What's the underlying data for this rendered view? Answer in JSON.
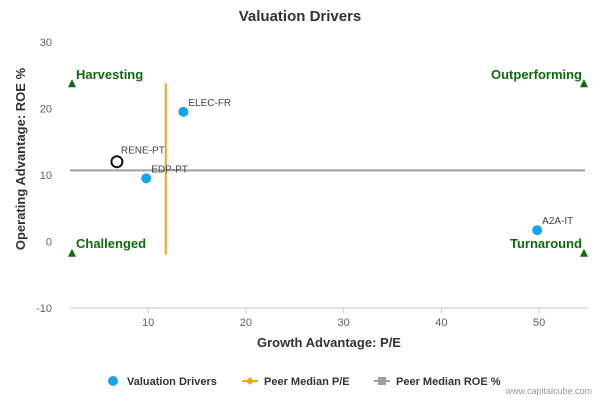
{
  "chart_data": {
    "type": "scatter",
    "title": "Valuation Drivers",
    "xlabel": "Growth Advantage: P/E",
    "ylabel": "Operating Advantage: ROE %",
    "xlim": [
      2,
      55
    ],
    "ylim": [
      -10,
      30
    ],
    "x_ticks": [
      "10",
      "20",
      "30",
      "40",
      "50"
    ],
    "y_ticks": [
      "30",
      "20",
      "10",
      "0",
      "-10"
    ],
    "grid": false,
    "legend_position": "bottom",
    "series": [
      {
        "name": "Valuation Drivers",
        "color": "#1aa3e8",
        "points": [
          {
            "label": "ELEC-FR",
            "x": 13.6,
            "y": 19.5
          },
          {
            "label": "EDP-PT",
            "x": 9.8,
            "y": 9.5
          },
          {
            "label": "A2A-IT",
            "x": 49.8,
            "y": 1.7
          }
        ]
      }
    ],
    "highlight": {
      "label": "RENE-PT",
      "x": 6.8,
      "y": 12.0
    },
    "peer_median_pe": {
      "name": "Peer Median P/E",
      "value": 11.8,
      "color": "#f5a31a",
      "y_range": [
        -2,
        23.8
      ]
    },
    "peer_median_roe": {
      "name": "Peer Median ROE %",
      "value": 10.7,
      "color": "#9aa0a6"
    },
    "quadrants": {
      "top_left": "Harvesting",
      "top_right": "Outperforming",
      "bottom_left": "Challenged",
      "bottom_right": "Turnaround",
      "color": "#0f6a0f",
      "marker_y_top": 23.8,
      "marker_y_bottom": -1.7
    }
  },
  "watermark": "www.capitalcube.com"
}
